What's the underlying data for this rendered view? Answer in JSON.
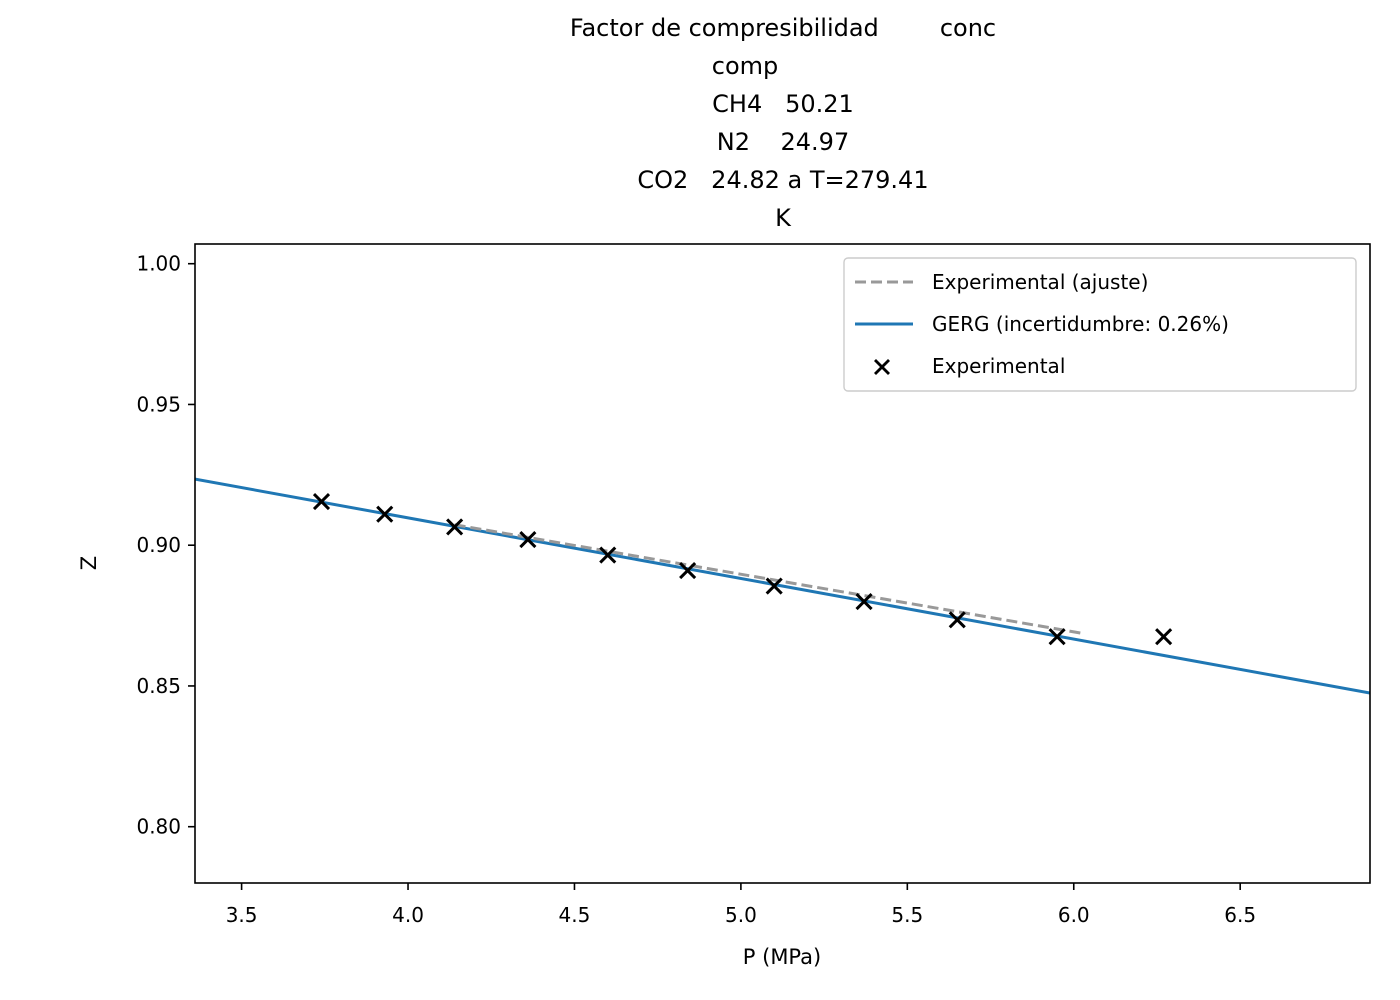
{
  "chart_data": {
    "type": "line",
    "title_lines": [
      "Factor de compresibilidad        conc",
      "comp",
      "CH4   50.21",
      "N2    24.97",
      "CO2   24.82 a T=279.41",
      "K"
    ],
    "xlabel": "P (MPa)",
    "ylabel": "Z",
    "xlim": [
      3.36,
      6.89
    ],
    "ylim": [
      0.78,
      1.007
    ],
    "xticks": [
      "3.5",
      "4.0",
      "4.5",
      "5.0",
      "5.5",
      "6.0",
      "6.5"
    ],
    "yticks": [
      "0.80",
      "0.85",
      "0.90",
      "0.95",
      "1.00"
    ],
    "grid": false,
    "legend_position": "top-right",
    "series": [
      {
        "name": "Experimental (ajuste)",
        "kind": "line",
        "style": "dashed",
        "color": "#999999",
        "x": [
          4.14,
          6.02
        ],
        "y": [
          0.9073,
          0.8688
        ]
      },
      {
        "name": "GERG (incertidumbre: 0.26%)",
        "kind": "line",
        "style": "solid",
        "color": "#1f77b4",
        "x": [
          3.36,
          6.89
        ],
        "y": [
          0.9235,
          0.8475
        ]
      },
      {
        "name": "Experimental",
        "kind": "scatter",
        "marker": "x",
        "color": "#000000",
        "x": [
          3.74,
          3.93,
          4.14,
          4.36,
          4.6,
          4.84,
          5.1,
          5.37,
          5.65,
          5.95,
          6.27
        ],
        "y": [
          0.9155,
          0.911,
          0.9065,
          0.902,
          0.8965,
          0.891,
          0.8855,
          0.88,
          0.8735,
          0.8675,
          0.8675
        ]
      }
    ]
  }
}
